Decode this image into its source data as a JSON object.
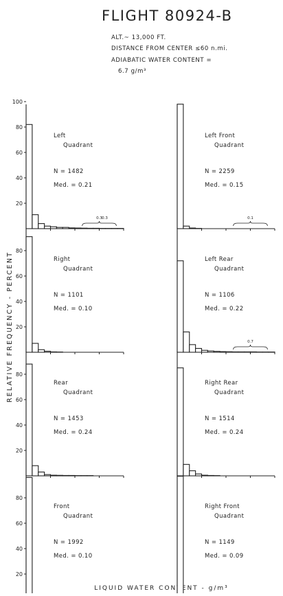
{
  "header": {
    "title": "FLIGHT 80924-B",
    "lines": [
      "ALT.~ 13,000 FT.",
      "DISTANCE FROM CENTER ≤60 n.mi.",
      "ADIABATIC WATER CONTENT =",
      "6.7 g/m³"
    ]
  },
  "axes": {
    "ylabel": "RELATIVE FREQUENCY - PERCENT",
    "xlabel": "LIQUID WATER CONTENT - g/m³",
    "x_ticks": [
      "2",
      "4",
      "6",
      "8"
    ],
    "bin_width": 0.5,
    "xlim": [
      0,
      8
    ],
    "ylim": [
      0,
      100
    ]
  },
  "chart_data": [
    {
      "type": "bar",
      "panel": "Left Quadrant",
      "lines": [
        "Left",
        "Quadrant"
      ],
      "n_label": "N = 1482",
      "med_label": "Med. = 0.21",
      "y_ticks": [
        "100",
        "80",
        "60",
        "40",
        "20"
      ],
      "values": [
        82,
        11,
        4,
        2,
        1.5,
        1,
        1,
        0.6,
        0.5,
        0.4,
        0.3,
        0.3,
        0.2,
        0.2,
        0.2,
        0.2
      ],
      "annotations": [
        "0.3",
        "0.3"
      ]
    },
    {
      "type": "bar",
      "panel": "Left Front Quadrant",
      "lines": [
        "Left Front",
        "Quadrant"
      ],
      "n_label": "N = 2259",
      "med_label": "Med. = 0.15",
      "y_ticks": [],
      "values": [
        98,
        2,
        0.5,
        0.2,
        0,
        0,
        0,
        0,
        0,
        0,
        0,
        0,
        0,
        0,
        0,
        0
      ],
      "annotations": [
        "0.1"
      ]
    },
    {
      "type": "bar",
      "panel": "Right Quadrant",
      "lines": [
        "Right",
        "Quadrant"
      ],
      "n_label": "N = 1101",
      "med_label": "Med. = 0.10",
      "y_ticks": [
        "80",
        "60",
        "40",
        "20"
      ],
      "values": [
        91,
        7,
        2,
        0.8,
        0.3,
        0.2,
        0,
        0,
        0,
        0,
        0,
        0,
        0,
        0,
        0,
        0
      ],
      "annotations": []
    },
    {
      "type": "bar",
      "panel": "Left Rear Quadrant",
      "lines": [
        "Left Rear",
        "Quadrant"
      ],
      "n_label": "N = 1106",
      "med_label": "Med. = 0.22",
      "y_ticks": [],
      "values": [
        72,
        16,
        6,
        3,
        1.5,
        1,
        0.7,
        0.5,
        0.4,
        0.3,
        0.3,
        0.3,
        0.3,
        0.2,
        0.2,
        0.2
      ],
      "annotations": [
        "0.7"
      ]
    },
    {
      "type": "bar",
      "panel": "Rear Quadrant",
      "lines": [
        "Rear",
        "Quadrant"
      ],
      "n_label": "N = 1453",
      "med_label": "Med. = 0.24",
      "y_ticks": [
        "80",
        "60",
        "40",
        "20"
      ],
      "values": [
        88,
        8,
        3,
        1,
        0.5,
        0.4,
        0.3,
        0.3,
        0.2,
        0.2,
        0.2,
        0,
        0,
        0,
        0,
        0
      ],
      "annotations": []
    },
    {
      "type": "bar",
      "panel": "Right Rear Quadrant",
      "lines": [
        "Right Rear",
        "Quadrant"
      ],
      "n_label": "N = 1514",
      "med_label": "Med. = 0.24",
      "y_ticks": [],
      "values": [
        85,
        9,
        4,
        1.5,
        0.5,
        0.3,
        0.2,
        0,
        0,
        0,
        0,
        0,
        0,
        0,
        0,
        0
      ],
      "annotations": []
    },
    {
      "type": "bar",
      "panel": "Front Quadrant",
      "lines": [
        "Front",
        "Quadrant"
      ],
      "n_label": "N = 1992",
      "med_label": "Med. = 0.10",
      "y_ticks": [
        "80",
        "60",
        "40",
        "20"
      ],
      "values": [
        96,
        2,
        1,
        0.4,
        0.3,
        0.2,
        0,
        0,
        0,
        0,
        0,
        0,
        0,
        0,
        0,
        0
      ],
      "annotations": []
    },
    {
      "type": "bar",
      "panel": "Right Front Quadrant",
      "lines": [
        "Right Front",
        "Quadrant"
      ],
      "n_label": "N = 1149",
      "med_label": "Med. = 0.09",
      "y_ticks": [],
      "values": [
        97,
        2,
        0.5,
        0.3,
        0.2,
        0,
        0,
        0,
        0,
        0,
        0,
        0,
        0,
        0,
        0,
        0
      ],
      "annotations": []
    }
  ]
}
